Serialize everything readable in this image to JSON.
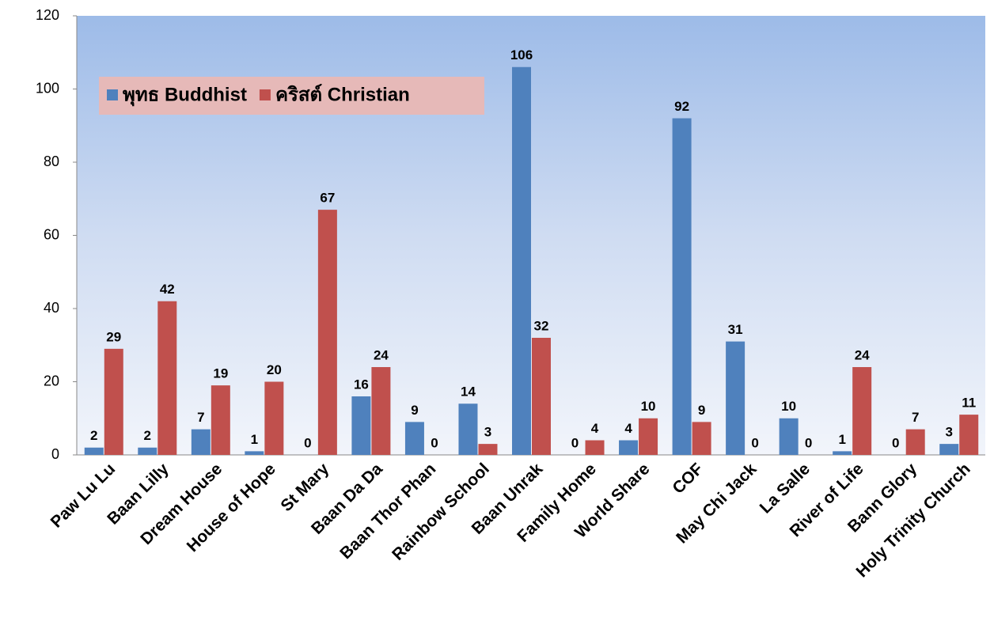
{
  "chart_data": {
    "type": "bar",
    "categories": [
      "Paw Lu Lu",
      "Baan Lilly",
      "Dream House",
      "House of Hope",
      "St Mary",
      "Baan Da Da",
      "Baan Thor Phan",
      "Rainbow School",
      "Baan Unrak",
      "Family Home",
      "World Share",
      "COF",
      "May Chi Jack",
      "La Salle",
      "River of Life",
      "Bann Glory",
      "Holy Trinity Church"
    ],
    "series": [
      {
        "name": "พุทธ Buddhist",
        "color": "#4f81bd",
        "values": [
          2,
          2,
          7,
          1,
          0,
          16,
          9,
          14,
          106,
          0,
          4,
          92,
          31,
          10,
          1,
          0,
          3
        ]
      },
      {
        "name": "คริสต์ Christian",
        "color": "#c0504d",
        "values": [
          29,
          42,
          19,
          20,
          67,
          24,
          0,
          3,
          32,
          4,
          10,
          9,
          0,
          0,
          24,
          7,
          11
        ]
      }
    ],
    "ylim": [
      0,
      120
    ],
    "yticks": [
      0,
      20,
      40,
      60,
      80,
      100,
      120
    ],
    "grid": false,
    "legend": "upper left"
  }
}
